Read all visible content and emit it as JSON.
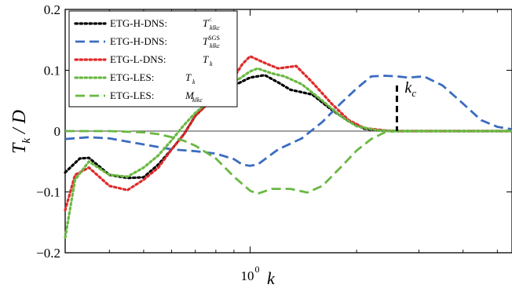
{
  "chart_data": {
    "type": "line",
    "xscale": "log",
    "xlim": [
      0.3,
      5.5
    ],
    "ylim": [
      -0.2,
      0.2
    ],
    "yticks": [
      -0.2,
      -0.1,
      0,
      0.1,
      0.2
    ],
    "ytick_labels": [
      "−0.2",
      "−0.1",
      "0",
      "0.1",
      "0.2"
    ],
    "xtick_base": "10",
    "xtick_exp": "0",
    "xlabel": "k",
    "ylabel": "T_k / D",
    "grid": false,
    "legend_position": "top-left",
    "zero_line": true,
    "vline": {
      "x": 2.6,
      "label": "k_c"
    },
    "series": [
      {
        "name": "ETG-H-DNS:",
        "sym_main": "T",
        "sym_sup": "<",
        "sym_sub": "klkc",
        "color": "#000000",
        "dash": "dotted",
        "x": [
          0.3,
          0.33,
          0.35,
          0.4,
          0.45,
          0.5,
          0.55,
          0.6,
          0.65,
          0.7,
          0.75,
          0.8,
          0.9,
          1.0,
          1.1,
          1.2,
          1.3,
          1.5,
          1.7,
          1.9,
          2.1,
          2.3,
          2.6,
          3.0,
          3.5,
          4.0,
          4.5,
          5.0,
          5.5
        ],
        "y": [
          -0.068,
          -0.045,
          -0.044,
          -0.072,
          -0.077,
          -0.076,
          -0.055,
          -0.03,
          -0.005,
          0.025,
          0.042,
          0.055,
          0.075,
          0.088,
          0.092,
          0.08,
          0.068,
          0.06,
          0.035,
          0.016,
          0.004,
          0.001,
          0.0,
          0.0,
          0.0,
          0.0,
          0.0,
          0.0,
          0.0
        ]
      },
      {
        "name": "ETG-H-DNS:",
        "sym_main": "T",
        "sym_sup": "SGS",
        "sym_sub": "klkc",
        "color": "#3b6cc0",
        "dash": "dashed",
        "x": [
          0.3,
          0.35,
          0.4,
          0.5,
          0.6,
          0.7,
          0.8,
          0.9,
          0.95,
          1.0,
          1.05,
          1.2,
          1.4,
          1.6,
          1.8,
          2.0,
          2.2,
          2.4,
          2.6,
          2.8,
          3.1,
          3.5,
          4.0,
          4.5,
          5.0,
          5.5
        ],
        "y": [
          -0.013,
          -0.01,
          -0.012,
          -0.022,
          -0.03,
          -0.033,
          -0.037,
          -0.046,
          -0.055,
          -0.057,
          -0.055,
          -0.03,
          -0.012,
          0.015,
          0.045,
          0.07,
          0.09,
          0.091,
          0.09,
          0.088,
          0.09,
          0.075,
          0.045,
          0.018,
          0.007,
          0.003
        ]
      },
      {
        "name": "ETG-L-DNS:",
        "sym_main": "T",
        "sym_sup": "",
        "sym_sub": "k",
        "color": "#e02a2a",
        "dash": "dotted",
        "x": [
          0.3,
          0.32,
          0.35,
          0.4,
          0.45,
          0.5,
          0.55,
          0.6,
          0.65,
          0.7,
          0.75,
          0.8,
          0.9,
          0.95,
          1.0,
          1.1,
          1.2,
          1.35,
          1.5,
          1.7,
          1.9,
          2.1,
          2.4,
          2.6,
          3.0,
          3.5,
          4.0,
          4.5,
          5.0,
          5.5
        ],
        "y": [
          -0.13,
          -0.072,
          -0.06,
          -0.09,
          -0.097,
          -0.08,
          -0.06,
          -0.03,
          -0.005,
          0.025,
          0.042,
          0.055,
          0.088,
          0.11,
          0.123,
          0.112,
          0.103,
          0.107,
          0.08,
          0.045,
          0.018,
          0.005,
          0.001,
          0.0,
          0.0,
          0.0,
          0.0,
          0.0,
          0.0,
          0.0
        ]
      },
      {
        "name": "ETG-LES:",
        "sym_main": "T",
        "sym_sup": "",
        "sym_sub": "k",
        "color": "#6ab842",
        "dash": "dotted",
        "x": [
          0.3,
          0.32,
          0.35,
          0.4,
          0.45,
          0.5,
          0.55,
          0.6,
          0.65,
          0.7,
          0.75,
          0.8,
          0.9,
          1.0,
          1.05,
          1.15,
          1.25,
          1.4,
          1.6,
          1.8,
          2.0,
          2.3,
          2.6,
          3.0,
          3.5,
          4.0,
          4.5,
          5.0,
          5.5
        ],
        "y": [
          -0.175,
          -0.08,
          -0.05,
          -0.072,
          -0.075,
          -0.06,
          -0.04,
          -0.015,
          0.01,
          0.03,
          0.045,
          0.06,
          0.08,
          0.098,
          0.103,
          0.095,
          0.09,
          0.077,
          0.05,
          0.025,
          0.008,
          0.001,
          0.0,
          0.0,
          0.0,
          0.0,
          0.0,
          0.0,
          0.0
        ]
      },
      {
        "name": "ETG-LES:",
        "sym_main": "M",
        "sym_sup": "",
        "sym_sub": "klkc",
        "color": "#6ab842",
        "dash": "dashed",
        "x": [
          0.3,
          0.4,
          0.5,
          0.55,
          0.6,
          0.65,
          0.7,
          0.8,
          0.9,
          1.0,
          1.05,
          1.15,
          1.3,
          1.45,
          1.6,
          1.8,
          2.0,
          2.2,
          2.4,
          2.6,
          3.0,
          3.5,
          4.0,
          5.5
        ],
        "y": [
          0.0,
          0.0,
          -0.002,
          -0.005,
          -0.01,
          -0.016,
          -0.024,
          -0.045,
          -0.075,
          -0.098,
          -0.103,
          -0.095,
          -0.095,
          -0.101,
          -0.09,
          -0.06,
          -0.032,
          -0.013,
          -0.002,
          0.0,
          0.0,
          0.0,
          0.0,
          0.0
        ]
      }
    ]
  }
}
